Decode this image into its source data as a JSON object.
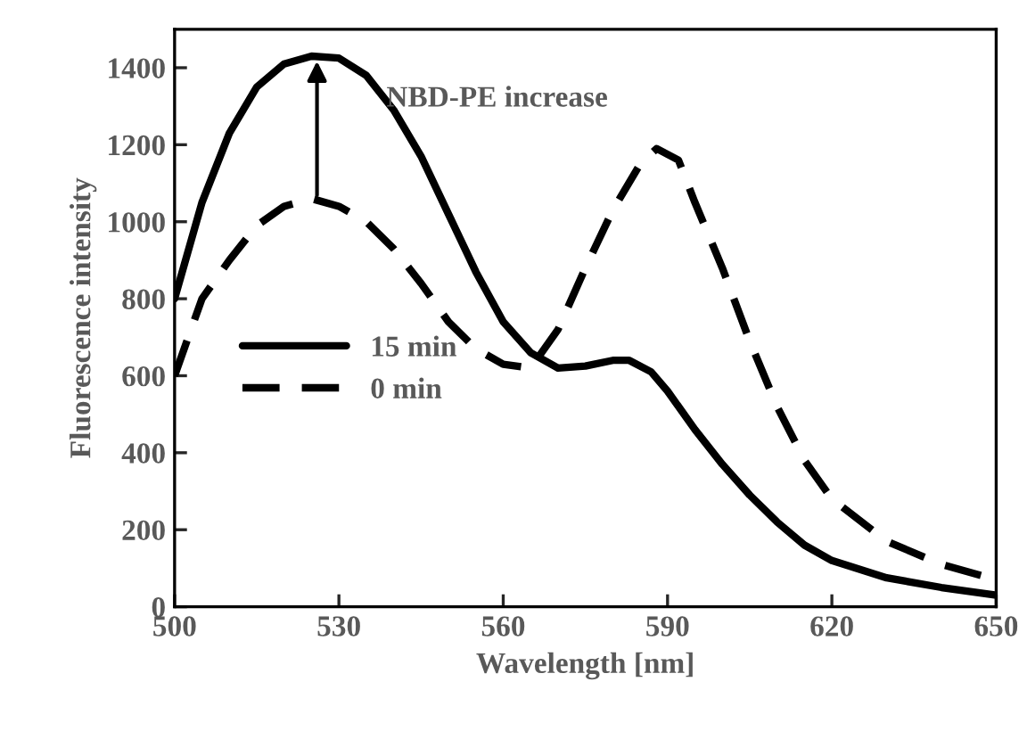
{
  "chart_data": {
    "type": "line",
    "xlabel": "Wavelength [nm]",
    "ylabel": "Fluorescence intensity",
    "xlim": [
      500,
      650
    ],
    "xticks": [
      500,
      530,
      560,
      590,
      620,
      650
    ],
    "ylim": [
      0,
      1500
    ],
    "yticks": [
      0,
      200,
      400,
      600,
      800,
      1000,
      1200,
      1400
    ],
    "grid": false,
    "legend": "left",
    "marker": "none",
    "annotations": [
      {
        "text": "NBD-PE increase",
        "x": 526,
        "y": 1430
      }
    ],
    "series": [
      {
        "name": "15 min",
        "color": "#000000",
        "line_style": "solid",
        "x": [
          500,
          505,
          510,
          515,
          520,
          525,
          530,
          535,
          540,
          545,
          550,
          555,
          560,
          565,
          570,
          575,
          580,
          583,
          587,
          590,
          595,
          600,
          605,
          610,
          615,
          620,
          630,
          640,
          650
        ],
        "values": [
          800,
          1050,
          1230,
          1350,
          1410,
          1430,
          1425,
          1380,
          1290,
          1170,
          1020,
          870,
          740,
          660,
          620,
          625,
          640,
          640,
          610,
          560,
          460,
          370,
          290,
          220,
          160,
          120,
          75,
          50,
          30
        ]
      },
      {
        "name": "0 min",
        "color": "#000000",
        "line_style": "dashed",
        "x": [
          500,
          505,
          510,
          515,
          520,
          525,
          530,
          535,
          540,
          545,
          550,
          555,
          560,
          565,
          570,
          575,
          580,
          585,
          588,
          592,
          595,
          600,
          605,
          610,
          615,
          620,
          630,
          640,
          650
        ],
        "values": [
          600,
          800,
          900,
          990,
          1040,
          1060,
          1040,
          1000,
          930,
          840,
          740,
          670,
          630,
          620,
          720,
          880,
          1030,
          1150,
          1190,
          1160,
          1050,
          880,
          690,
          520,
          380,
          280,
          170,
          110,
          70
        ]
      }
    ]
  }
}
